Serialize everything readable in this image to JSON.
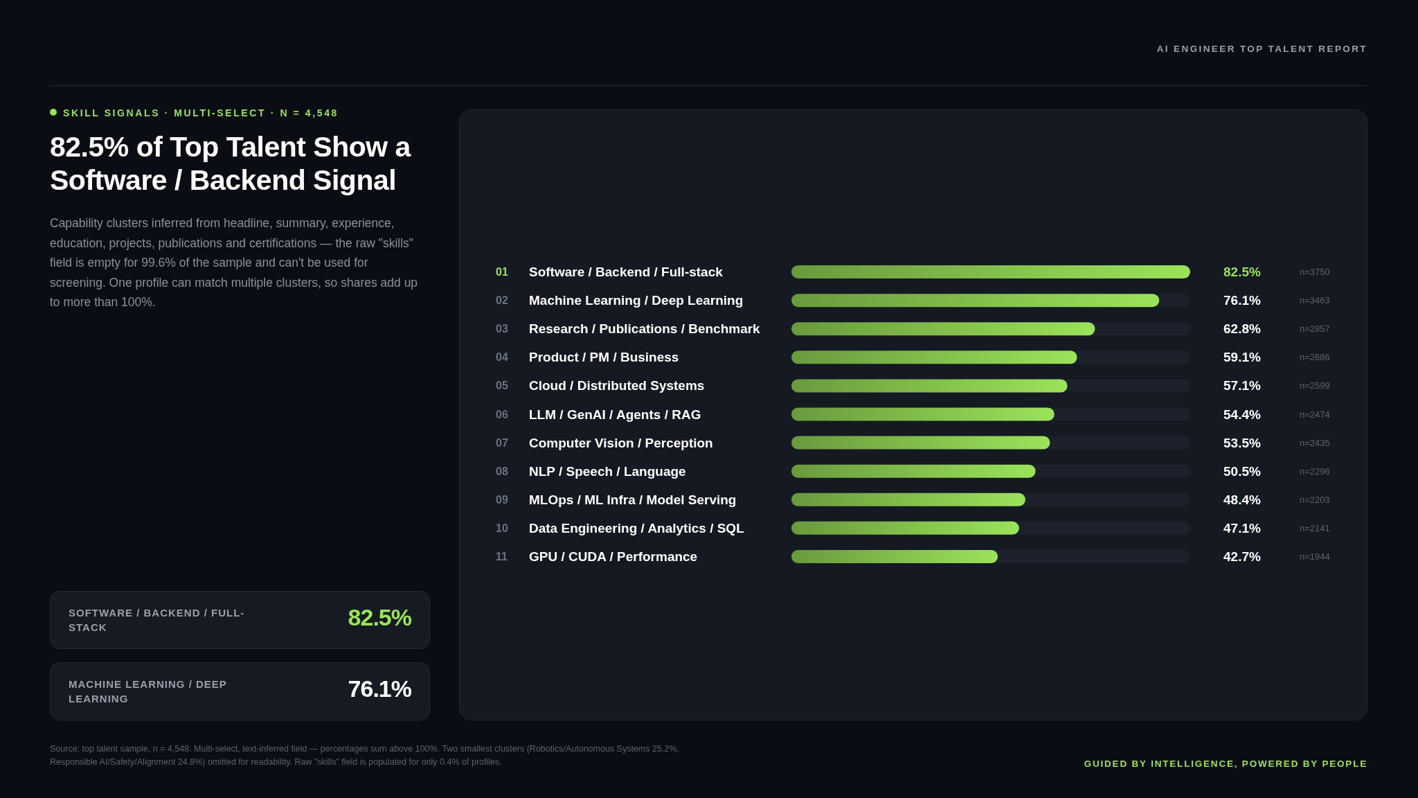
{
  "chart_data": {
    "type": "bar",
    "orientation": "horizontal",
    "title": "82.5% of Top Talent Show a Software / Backend Signal",
    "subtitle": "SKILL SIGNALS · MULTI-SELECT · N = 4,548",
    "categories": [
      "Software / Backend / Full-stack",
      "Machine Learning / Deep Learning",
      "Research / Publications / Benchmark",
      "Product / PM / Business",
      "Cloud / Distributed Systems",
      "LLM / GenAI / Agents / RAG",
      "Computer Vision / Perception",
      "NLP / Speech / Language",
      "MLOps / ML Infra / Model Serving",
      "Data Engineering / Analytics / SQL",
      "GPU / CUDA / Performance"
    ],
    "values": [
      82.5,
      76.1,
      62.8,
      59.1,
      57.1,
      54.4,
      53.5,
      50.5,
      48.4,
      47.1,
      42.7
    ],
    "value_labels": [
      "82.5%",
      "76.1%",
      "62.8%",
      "59.1%",
      "57.1%",
      "54.4%",
      "53.5%",
      "50.5%",
      "48.4%",
      "47.1%",
      "42.7%"
    ],
    "color": "#9be35a",
    "annotations": [
      "AI ENGINEER TOP TALENT REPORT",
      "Capability clusters inferred from headline, summary, experience, education, projects, publications and certifications — the raw \"skills\" field is empty for 99.6% of the sample and can't be used for screening. One profile can match multiple clusters, so shares add up to more than 100%.",
      "SOFTWARE / BACKEND / FULL-STACK",
      "82.5%",
      "MACHINE LEARNING / DEEP LEARNING",
      "76.1%",
      "Source: top talent sample, n = 4,548. Multi-select, text-inferred field — percentages sum above 100%. Two smallest clusters (Robotics/Autonomous Systems 25.2%, Responsible AI/Safety/Alignment 24.8%) omitted for readability. Raw \"skills\" field is populated for only 0.4% of profiles.",
      "GUIDED BY INTELLIGENCE, POWERED BY PEOPLE",
      "01",
      "02",
      "03",
      "04",
      "05",
      "06",
      "07",
      "08",
      "09",
      "10",
      "11",
      "n=3750",
      "n=3463",
      "n=2857",
      "n=2686",
      "n=2599",
      "n=2474",
      "n=2435",
      "n=2296",
      "n=2203",
      "n=2141",
      "n=1944"
    ]
  }
}
